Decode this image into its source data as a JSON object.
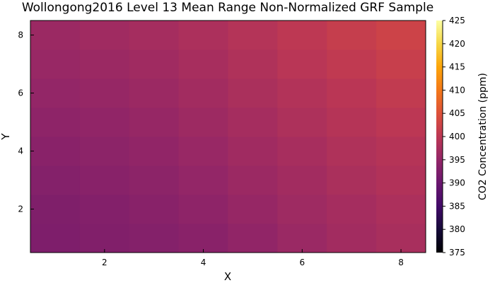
{
  "chart_data": {
    "type": "heatmap",
    "title": "Wollongong2016 Level 13 Mean Range Non-Normalized GRF Sample",
    "xlabel": "X",
    "ylabel": "Y",
    "colorbar_label": "CO2 Concentration (ppm)",
    "colormap": "inferno",
    "x": [
      1,
      2,
      3,
      4,
      5,
      6,
      7,
      8
    ],
    "y": [
      1,
      2,
      3,
      4,
      5,
      6,
      7,
      8
    ],
    "xlim": [
      0.5,
      8.5
    ],
    "ylim": [
      0.5,
      8.5
    ],
    "xticks": [
      2,
      4,
      6,
      8
    ],
    "yticks": [
      2,
      4,
      6,
      8
    ],
    "clim": [
      375,
      425
    ],
    "cticks": [
      375,
      380,
      385,
      390,
      395,
      400,
      405,
      410,
      415,
      420,
      425
    ],
    "grid": false,
    "z_rows_bottom_to_top": [
      [
        392.4,
        392.8,
        393.2,
        393.8,
        394.8,
        395.8,
        396.8,
        397.6
      ],
      [
        392.6,
        393.0,
        393.6,
        394.4,
        395.4,
        396.4,
        397.2,
        398.0
      ],
      [
        393.2,
        393.6,
        394.2,
        395.0,
        396.0,
        396.8,
        397.8,
        398.6
      ],
      [
        393.8,
        394.2,
        394.8,
        395.6,
        396.6,
        397.4,
        398.4,
        399.2
      ],
      [
        394.4,
        394.8,
        395.4,
        396.2,
        397.2,
        398.2,
        399.2,
        400.0
      ],
      [
        395.0,
        395.4,
        396.0,
        396.8,
        397.8,
        398.8,
        399.8,
        400.8
      ],
      [
        395.6,
        396.0,
        396.6,
        397.4,
        398.4,
        399.6,
        400.6,
        401.6
      ],
      [
        396.0,
        396.6,
        397.2,
        398.0,
        399.0,
        400.2,
        401.4,
        402.4
      ]
    ]
  }
}
